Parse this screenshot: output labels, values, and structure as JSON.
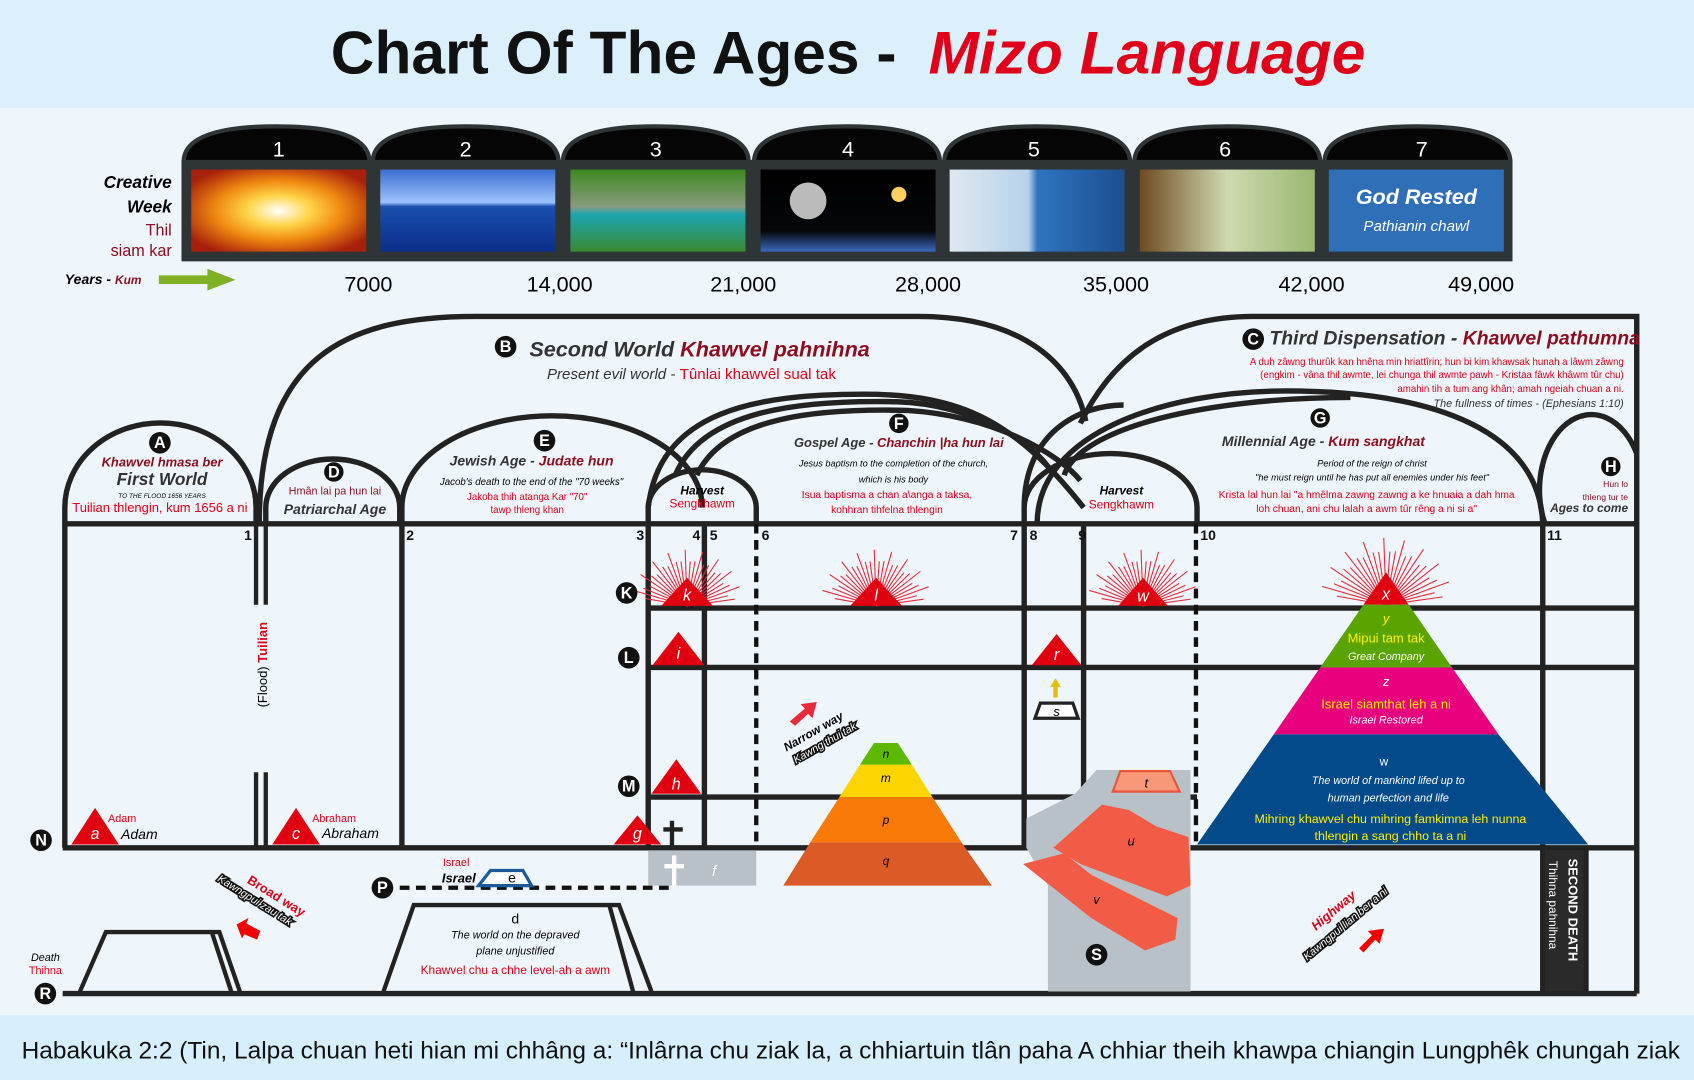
{
  "title": {
    "main": "Chart Of The Ages -",
    "accent": "Mizo Language"
  },
  "creative_week": {
    "label_en_1": "Creative",
    "label_en_2": "Week",
    "label_mz_1": "Thil",
    "label_mz_2": "siam kar",
    "days": [
      "1",
      "2",
      "3",
      "4",
      "5",
      "6",
      "7"
    ],
    "day7_title": "God Rested",
    "day7_subtitle": "Pathianin chawl",
    "years_label": "Years -",
    "years_label_mz": "Kum",
    "years": [
      "7000",
      "14,000",
      "21,000",
      "28,000",
      "35,000",
      "42,000",
      "49,000"
    ]
  },
  "markers": {
    "A": "A",
    "B": "B",
    "C": "C",
    "D": "D",
    "E": "E",
    "F": "F",
    "G": "G",
    "H": "H",
    "K": "K",
    "L": "L",
    "M": "M",
    "N": "N",
    "P": "P",
    "R": "R",
    "S": "S"
  },
  "sections": {
    "A": {
      "mz": "Khawvel hmasa ber",
      "en": "First World",
      "note": "TO THE FLOOD 1656 YEARS",
      "mz2": "Tuilian thlengin, kum 1656 a ni"
    },
    "B": {
      "en": "Second World",
      "mz": "Khawvel pahnihna",
      "sub_en": "Present evil world -",
      "sub_mz": "Tûnlai khawvêl sual tak"
    },
    "C": {
      "en": "Third Dispensation -",
      "mz": "Khawvel pathumna",
      "desc_1": "A duh zâwng thurûk kan hnêna min hriattîrin; hun bi kim khawsak hunah a lâwm zâwng",
      "desc_2": "(engkim - vâna thil awmte, lei chunga thil awmte pawh - Kristaa fâwk khâwm tûr chu)",
      "desc_3": "amahin tih a tum ang khân; amah ngeiah chuan a ni.",
      "ref": "The fullness of times - (Ephesians 1:10)"
    },
    "D": {
      "mz": "Hmân lai pa hun lai",
      "en": "Patriarchal Age"
    },
    "E": {
      "en": "Jewish Age -",
      "mz": "Judate hun",
      "desc": "Jacob's death to the end of the \"70 weeks\"",
      "mz_1": "Jakoba thih atanga Kar \"70\"",
      "mz_2": "tawp thleng khan"
    },
    "F": {
      "en": "Gospel  Age -",
      "mz": "Chanchin |ha hun lai",
      "desc_1": "Jesus baptism to the completion of the church,",
      "desc_2": "which is his body",
      "mz_1": "Isua baptisma a chan a\\anga a taksa,",
      "mz_2": "kohhran tihfelna thlengin"
    },
    "G": {
      "en": "Millennial Age -",
      "mz": "Kum sangkhat",
      "desc_1": "Period of the reign of christ",
      "desc_2": "\"he must reign until he has put all enemies under his feet\"",
      "mz_1": "Krista lal hun lai \"a hmêlma zawng zawng a ke hnuaia a dah hma",
      "mz_2": "loh chuan, ani chu lalah a awm tûr rêng a ni si a\""
    },
    "H": {
      "mz_1": "Hun lo",
      "mz_2": "thleng tur te",
      "en": "Ages to come"
    },
    "harvest_1": {
      "en": "Harvest",
      "mz": "Sengkhawm"
    },
    "harvest_2": {
      "en": "Harvest",
      "mz": "Sengkhawm"
    }
  },
  "period_numbers": [
    "1",
    "2",
    "3",
    "4",
    "5",
    "6",
    "7",
    "8",
    "9",
    "10",
    "11"
  ],
  "flood": {
    "en": "(Flood)",
    "mz": "Tuilian"
  },
  "points": {
    "a": "a",
    "adam_mz": "Adam",
    "adam_en": "Adam",
    "c": "c",
    "abraham_mz": "Abraham",
    "abraham_en": "Abraham",
    "g": "g",
    "h": "h",
    "i": "i",
    "k": "k",
    "l": "l",
    "r": "r",
    "s": "s",
    "t": "t",
    "u": "u",
    "v": "v",
    "w_star": "w",
    "x": "x",
    "e": "e",
    "israel_mz": "Israel",
    "israel_en": "Israel",
    "f": "f",
    "n": "n",
    "m": "m",
    "p": "p",
    "q": "q"
  },
  "d_plane": {
    "letter": "d",
    "en_1": "The world on the depraved",
    "en_2": "plane unjustified",
    "mz": "Khawvel chu a chhe level-ah a awm"
  },
  "great_pyramid": {
    "y": "y",
    "y_mz": "Mipui tam tak",
    "y_en": "Great Company",
    "z": "z",
    "z_mz": "Israel siamthat leh a ni",
    "z_en": "Israel Restored",
    "w": "w",
    "w_en_1": "The world of mankind lifed up to",
    "w_en_2": "human perfection and life",
    "w_mz_1": "Mihring khawvel chu mihring famkimna leh nunna",
    "w_mz_2": "thlengin a sang chho ta a ni"
  },
  "ways": {
    "narrow_en": "Narrow way",
    "narrow_mz": "Kawng thui tak",
    "broad_en": "Broad way",
    "broad_mz": "Kawngpui zau tak",
    "highway_en": "Highway",
    "highway_mz": "Kawngpui lian ber a ni"
  },
  "death": {
    "en": "Death",
    "mz": "Thihna"
  },
  "second_death": {
    "en": "SECOND DEATH",
    "mz": "Thihna pahnihna"
  },
  "footer": {
    "verse": "Habakuka 2:2 (Tin, Lalpa chuan heti hian mi chhâng a: “Inlârna chu ziak la, a chhiartuin tlân paha A chhiar theih khawpa chiangin Lungphêk chungah ziak"
  },
  "colors": {
    "accent_red": "#e0001a",
    "dark_red": "#8b0d1f",
    "green": "#5aa400",
    "pink": "#e8007e",
    "blue": "#034a8a",
    "yellow": "#ffef00"
  }
}
